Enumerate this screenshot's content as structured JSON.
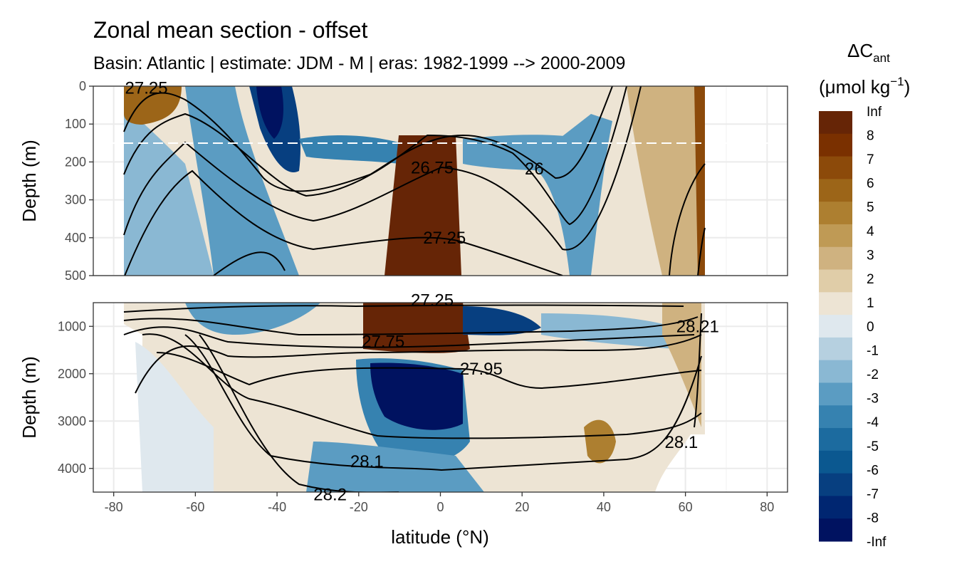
{
  "chart_data": {
    "type": "contour",
    "title": "Zonal mean section - offset",
    "subtitle": "Basin: Atlantic | estimate: JDM - M | eras: 1982-1999 --> 2000-2009",
    "xlabel": "latitude (°N)",
    "xlim": [
      -85,
      85
    ],
    "xticks": [
      -80,
      -60,
      -40,
      -20,
      0,
      20,
      40,
      60,
      80
    ],
    "legend": {
      "title_main": "ΔC",
      "title_sub": "ant",
      "units_open": "(μmol kg",
      "units_sup": "−1",
      "units_close": ")",
      "labels": [
        "Inf",
        "8",
        "7",
        "6",
        "5",
        "4",
        "3",
        "2",
        "1",
        "0",
        "-1",
        "-2",
        "-3",
        "-4",
        "-5",
        "-6",
        "-7",
        "-8",
        "-Inf"
      ],
      "colors": [
        "#662506",
        "#7a3000",
        "#8c4a0a",
        "#9c6518",
        "#ad7f30",
        "#bf9a55",
        "#cfb280",
        "#e0cda8",
        "#ede4d4",
        "#dfe8ee",
        "#b6d0e0",
        "#8ab8d3",
        "#5b9cc2",
        "#3682b0",
        "#1c6b9f",
        "#0b5890",
        "#073f80",
        "#002671",
        "#001260"
      ]
    },
    "panels": [
      {
        "ylabel": "Depth (m)",
        "ylim": [
          0,
          500
        ],
        "yticks": [
          0,
          100,
          200,
          300,
          400,
          500
        ],
        "reference_depth": 150,
        "contour_labels": [
          {
            "text": "27.25",
            "lat": -72,
            "depth": 5
          },
          {
            "text": "26.75",
            "lat": -2,
            "depth": 215
          },
          {
            "text": "26",
            "lat": 23,
            "depth": 218
          },
          {
            "text": "27.25",
            "lat": 1,
            "depth": 400
          }
        ]
      },
      {
        "ylabel": "Depth (m)",
        "ylim": [
          500,
          4500
        ],
        "yticks": [
          1000,
          2000,
          3000,
          4000
        ],
        "contour_labels": [
          {
            "text": "27.25",
            "lat": -2,
            "depth": 450
          },
          {
            "text": "27.75",
            "lat": -14,
            "depth": 1320
          },
          {
            "text": "27.95",
            "lat": 10,
            "depth": 1900
          },
          {
            "text": "28.1",
            "lat": -18,
            "depth": 3850
          },
          {
            "text": "28.2",
            "lat": -27,
            "depth": 4550
          },
          {
            "text": "28.1",
            "lat": 59,
            "depth": 3450
          },
          {
            "text": "28.21",
            "lat": 63,
            "depth": 1000
          }
        ]
      }
    ]
  }
}
